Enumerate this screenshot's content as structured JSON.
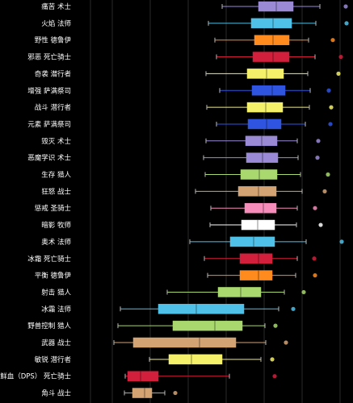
{
  "chart_data": {
    "type": "box",
    "orientation": "horizontal",
    "grid": true,
    "background": "#000000",
    "categories": [
      "痛苦 术士",
      "火焰 法师",
      "野性 德鲁伊",
      "邪恶 死亡骑士",
      "奇袭 潜行者",
      "增强 萨满祭司",
      "战斗 潜行者",
      "元素 萨满祭司",
      "毁灭 术士",
      "恶魔学识 术士",
      "生存 猎人",
      "狂怒 战士",
      "惩戒 圣骑士",
      "暗影 牧师",
      "奥术 法师",
      "冰霜 死亡骑士",
      "平衡 德鲁伊",
      "射击 猎人",
      "冰霜 法师",
      "野兽控制 猎人",
      "武器 战士",
      "敏锐 潜行者",
      "鲜血（DPS） 死亡骑士",
      "角斗 战士"
    ],
    "series": [
      {
        "min": 275,
        "q1": 320,
        "median": 342,
        "q3": 363,
        "max": 396,
        "outlier": 428,
        "color": "#9a8ad6"
      },
      {
        "min": 258,
        "q1": 311,
        "median": 338,
        "q3": 361,
        "max": 391,
        "outlier": 429,
        "color": "#4fc1e9"
      },
      {
        "min": 266,
        "q1": 315,
        "median": 338,
        "q3": 358,
        "max": 382,
        "outlier": 412,
        "color": "#ff8a1e"
      },
      {
        "min": 268,
        "q1": 313,
        "median": 338,
        "q3": 358,
        "max": 390,
        "outlier": 422,
        "color": "#d21f3c"
      },
      {
        "min": 255,
        "q1": 306,
        "median": 330,
        "q3": 351,
        "max": 381,
        "outlier": 419,
        "color": "#f4f06a"
      },
      {
        "min": 272,
        "q1": 312,
        "median": 337,
        "q3": 353,
        "max": 384,
        "outlier": 407,
        "color": "#2f55e0"
      },
      {
        "min": 256,
        "q1": 306,
        "median": 329,
        "q3": 350,
        "max": 383,
        "outlier": 410,
        "color": "#f4f06a"
      },
      {
        "min": 268,
        "q1": 307,
        "median": 330,
        "q3": 348,
        "max": 378,
        "outlier": 409,
        "color": "#2f55e0"
      },
      {
        "min": 255,
        "q1": 304,
        "median": 324,
        "q3": 343,
        "max": 368,
        "outlier": 394,
        "color": "#9a8ad6"
      },
      {
        "min": 252,
        "q1": 305,
        "median": 325,
        "q3": 344,
        "max": 369,
        "outlier": 393,
        "color": "#9a8ad6"
      },
      {
        "min": 254,
        "q1": 298,
        "median": 321,
        "q3": 343,
        "max": 372,
        "outlier": 406,
        "color": "#a8d86e"
      },
      {
        "min": 242,
        "q1": 295,
        "median": 320,
        "q3": 342,
        "max": 374,
        "outlier": 402,
        "color": "#d4a373"
      },
      {
        "min": 261,
        "q1": 303,
        "median": 326,
        "q3": 342,
        "max": 368,
        "outlier": 390,
        "color": "#f58cba"
      },
      {
        "min": 260,
        "q1": 299,
        "median": 319,
        "q3": 340,
        "max": 367,
        "outlier": 397,
        "color": "#ffffff"
      },
      {
        "min": 235,
        "q1": 285,
        "median": 314,
        "q3": 340,
        "max": 379,
        "outlier": 423,
        "color": "#4fc1e9"
      },
      {
        "min": 253,
        "q1": 297,
        "median": 320,
        "q3": 337,
        "max": 368,
        "outlier": 389,
        "color": "#d21f3c"
      },
      {
        "min": 257,
        "q1": 297,
        "median": 320,
        "q3": 337,
        "max": 366,
        "outlier": 390,
        "color": "#ff8a1e"
      },
      {
        "min": 207,
        "q1": 270,
        "median": 298,
        "q3": 323,
        "max": 352,
        "outlier": 376,
        "color": "#a8d86e"
      },
      {
        "min": 149,
        "q1": 196,
        "median": 243,
        "q3": 302,
        "max": 345,
        "outlier": 363,
        "color": "#4fc1e9"
      },
      {
        "min": 146,
        "q1": 214,
        "median": 266,
        "q3": 300,
        "max": 328,
        "outlier": 341,
        "color": "#a8d86e"
      },
      {
        "min": 141,
        "q1": 165,
        "median": 247,
        "q3": 292,
        "max": 329,
        "outlier": 354,
        "color": "#d4a373"
      },
      {
        "min": 185,
        "q1": 209,
        "median": 237,
        "q3": 275,
        "max": 323,
        "outlier": 337,
        "color": "#f4f06a"
      },
      {
        "min": 155,
        "q1": 158,
        "median": 174,
        "q3": 196,
        "max": 284,
        "outlier": 340,
        "color": "#d21f3c"
      },
      {
        "min": 154,
        "q1": 164,
        "median": 179,
        "q3": 188,
        "max": 204,
        "outlier": 217,
        "color": "#d4a373"
      }
    ]
  }
}
